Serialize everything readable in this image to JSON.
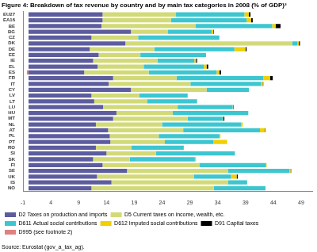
{
  "chart_data": {
    "type": "bar",
    "orientation": "horizontal",
    "stacked": true,
    "title": "Figure 4: Breakdown of tax revenue by country and by main tax categories in 2008 (% of GDP)³",
    "annotations": [
      "Source: Eurostat (gov_a_tax_ag)."
    ],
    "categories": [
      "EU27",
      "EA16",
      "BE",
      "BG",
      "CZ",
      "DK",
      "DE",
      "EE",
      "IE",
      "EL",
      "ES",
      "FR",
      "IT",
      "CY",
      "LV",
      "LT",
      "LU",
      "HU",
      "MT",
      "NL",
      "AT",
      "PL",
      "PT",
      "RO",
      "SI",
      "SK",
      "FI",
      "SE",
      "UK",
      "IS",
      "NO"
    ],
    "series": [
      {
        "name": "D2 Taxes on production and imports",
        "color": "#5c5c9e",
        "values": [
          13.3,
          13.3,
          13.1,
          18.4,
          11.3,
          17.4,
          11.0,
          12.6,
          11.6,
          12.4,
          10.0,
          15.2,
          14.4,
          18.4,
          11.3,
          11.8,
          13.4,
          15.8,
          15.2,
          12.1,
          14.3,
          14.6,
          14.7,
          12.1,
          14.0,
          11.6,
          13.3,
          17.7,
          12.3,
          14.9,
          11.3
        ]
      },
      {
        "name": "D5 Current taxes on income, wealth, etc.",
        "color": "#d2da78",
        "values": [
          13.2,
          12.3,
          16.9,
          6.6,
          8.4,
          30.0,
          11.6,
          7.5,
          11.6,
          8.3,
          11.6,
          11.4,
          14.7,
          13.6,
          8.6,
          9.5,
          13.4,
          10.1,
          13.4,
          11.9,
          13.5,
          8.8,
          9.8,
          6.4,
          8.9,
          6.6,
          17.4,
          18.2,
          17.4,
          21.0,
          22.0
        ]
      },
      {
        "name": "D611 Actual social contributions",
        "color": "#3cc6d0",
        "values": [
          12.3,
          13.6,
          13.8,
          7.9,
          14.6,
          0.9,
          14.4,
          11.8,
          6.6,
          10.8,
          12.2,
          15.6,
          12.7,
          7.6,
          8.7,
          9.0,
          9.9,
          13.6,
          6.3,
          14.2,
          13.8,
          10.9,
          8.7,
          9.4,
          14.2,
          11.7,
          12.0,
          11.0,
          6.7,
          3.4,
          9.3
        ]
      },
      {
        "name": "D612 Imputed social contributions",
        "color": "#f0d000",
        "values": [
          0.8,
          0.8,
          0.6,
          0.3,
          0.0,
          0.3,
          2.0,
          0.0,
          0.3,
          0.5,
          0.5,
          1.2,
          0.3,
          0.0,
          0.0,
          0.0,
          0.1,
          0.0,
          0.1,
          0.3,
          0.9,
          0.2,
          2.5,
          0.0,
          0.0,
          0.2,
          0.1,
          0.2,
          1.0,
          0.0,
          0.0
        ]
      },
      {
        "name": "D91 Capital taxes",
        "color": "#000000",
        "values": [
          0.3,
          0.3,
          0.9,
          0.1,
          0.0,
          0.2,
          0.2,
          0.0,
          0.2,
          0.3,
          0.3,
          0.5,
          0.1,
          0.0,
          0.0,
          0.0,
          0.1,
          0.0,
          0.2,
          0.0,
          0.1,
          0.0,
          0.0,
          0.0,
          0.0,
          0.0,
          0.0,
          0.1,
          0.2,
          0.0,
          0.0
        ]
      },
      {
        "name": "D995 (see footnote 2)",
        "color": "#e08080",
        "values": [
          0.0,
          0.0,
          0.0,
          0.0,
          0.0,
          0.0,
          0.0,
          0.0,
          0.0,
          0.0,
          -0.3,
          0.0,
          0.0,
          0.0,
          0.0,
          0.0,
          0.0,
          0.0,
          0.0,
          0.0,
          0.0,
          0.0,
          0.0,
          0.0,
          0.0,
          0.0,
          0.0,
          0.0,
          0.0,
          0.0,
          0.0
        ]
      }
    ],
    "xlim": [
      -1,
      51
    ],
    "xticks": [
      -1,
      4,
      9,
      14,
      19,
      24,
      29,
      34,
      39,
      44,
      49
    ],
    "legend": "bottom",
    "grid": false
  }
}
